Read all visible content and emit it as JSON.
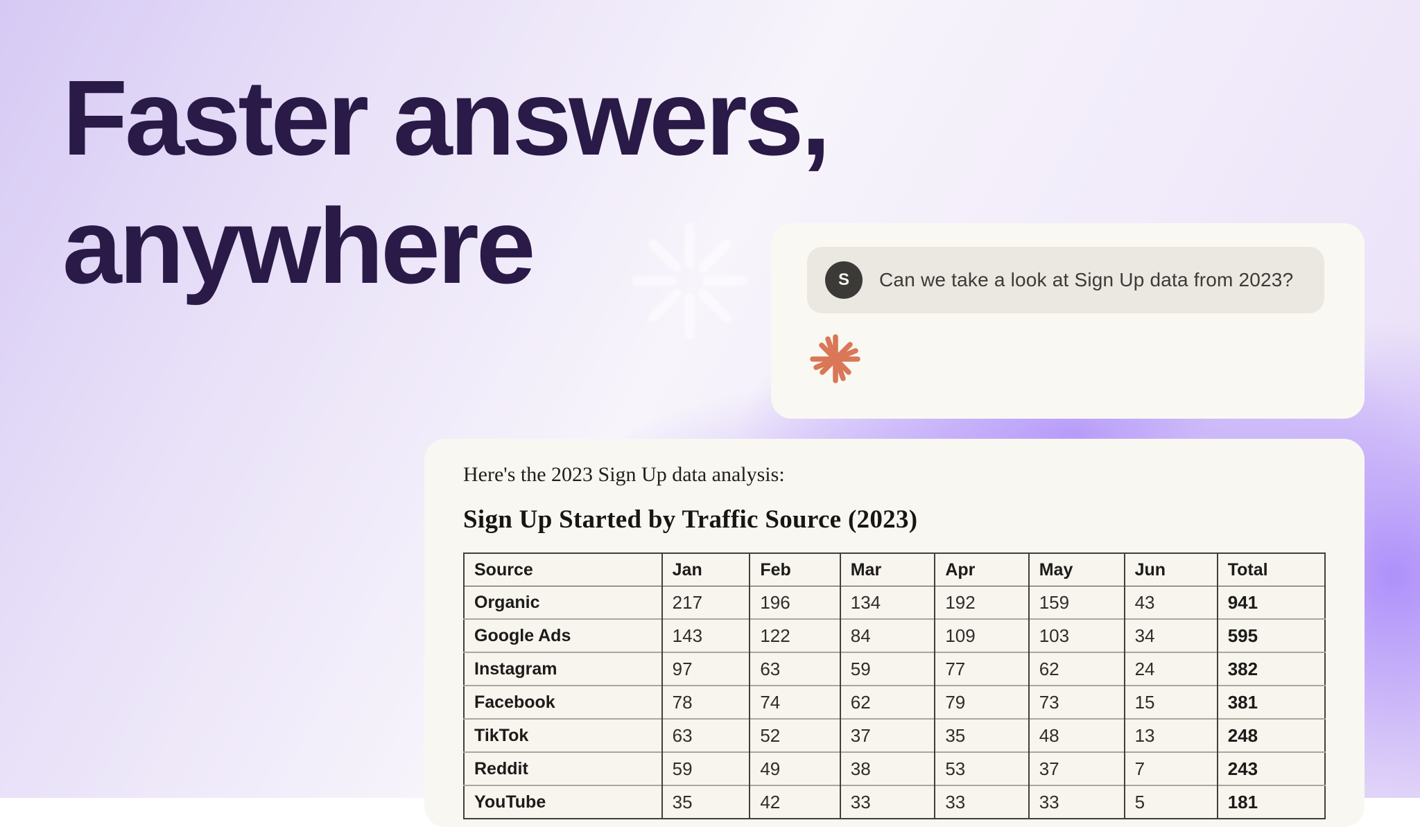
{
  "hero": {
    "heading_line1": "Faster answers,",
    "heading_line2": "anywhere"
  },
  "chat": {
    "avatar_initial": "S",
    "user_message": "Can we take a look at Sign Up data from 2023?",
    "assistant_icon": "claude-starburst",
    "starburst_color": "#d97757"
  },
  "analysis": {
    "intro": "Here's the 2023 Sign Up data analysis:",
    "table_title": "Sign Up Started by Traffic Source (2023)",
    "table": {
      "columns": [
        "Source",
        "Jan",
        "Feb",
        "Mar",
        "Apr",
        "May",
        "Jun",
        "Total"
      ],
      "rows": [
        {
          "source": "Organic",
          "values": [
            217,
            196,
            134,
            192,
            159,
            43
          ],
          "total": 941
        },
        {
          "source": "Google Ads",
          "values": [
            143,
            122,
            84,
            109,
            103,
            34
          ],
          "total": 595
        },
        {
          "source": "Instagram",
          "values": [
            97,
            63,
            59,
            77,
            62,
            24
          ],
          "total": 382
        },
        {
          "source": "Facebook",
          "values": [
            78,
            74,
            62,
            79,
            73,
            15
          ],
          "total": 381
        },
        {
          "source": "TikTok",
          "values": [
            63,
            52,
            37,
            35,
            48,
            13
          ],
          "total": 248
        },
        {
          "source": "Reddit",
          "values": [
            59,
            49,
            38,
            53,
            37,
            7
          ],
          "total": 243
        },
        {
          "source": "YouTube",
          "values": [
            35,
            42,
            33,
            33,
            33,
            5
          ],
          "total": 181
        }
      ]
    }
  },
  "colors": {
    "heading": "#2a1a47",
    "purple_glow": "#a07df8",
    "card_background": "#f9f7f1",
    "bubble_background": "#eae8e1",
    "avatar_background": "#3b3a36",
    "starburst": "#d97757"
  }
}
